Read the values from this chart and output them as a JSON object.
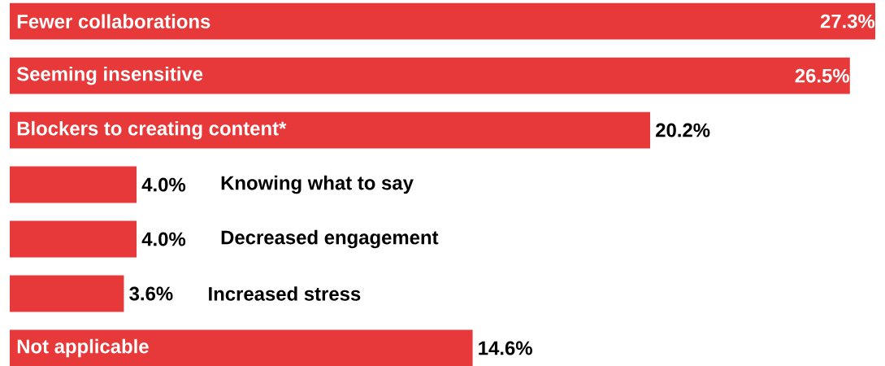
{
  "chart_data": {
    "type": "bar",
    "orientation": "horizontal",
    "categories": [
      "Fewer collaborations",
      "Seeming insensitive",
      "Blockers to creating content*",
      "Knowing what to say",
      "Decreased engagement",
      "Increased stress",
      "Not applicable"
    ],
    "values": [
      27.3,
      26.5,
      20.2,
      4.0,
      4.0,
      3.6,
      14.6
    ],
    "value_labels": [
      "27.3%",
      "26.5%",
      "20.2%",
      "4.0%",
      "4.0%",
      "3.6%",
      "14.6%"
    ],
    "color": "#e8393a"
  }
}
